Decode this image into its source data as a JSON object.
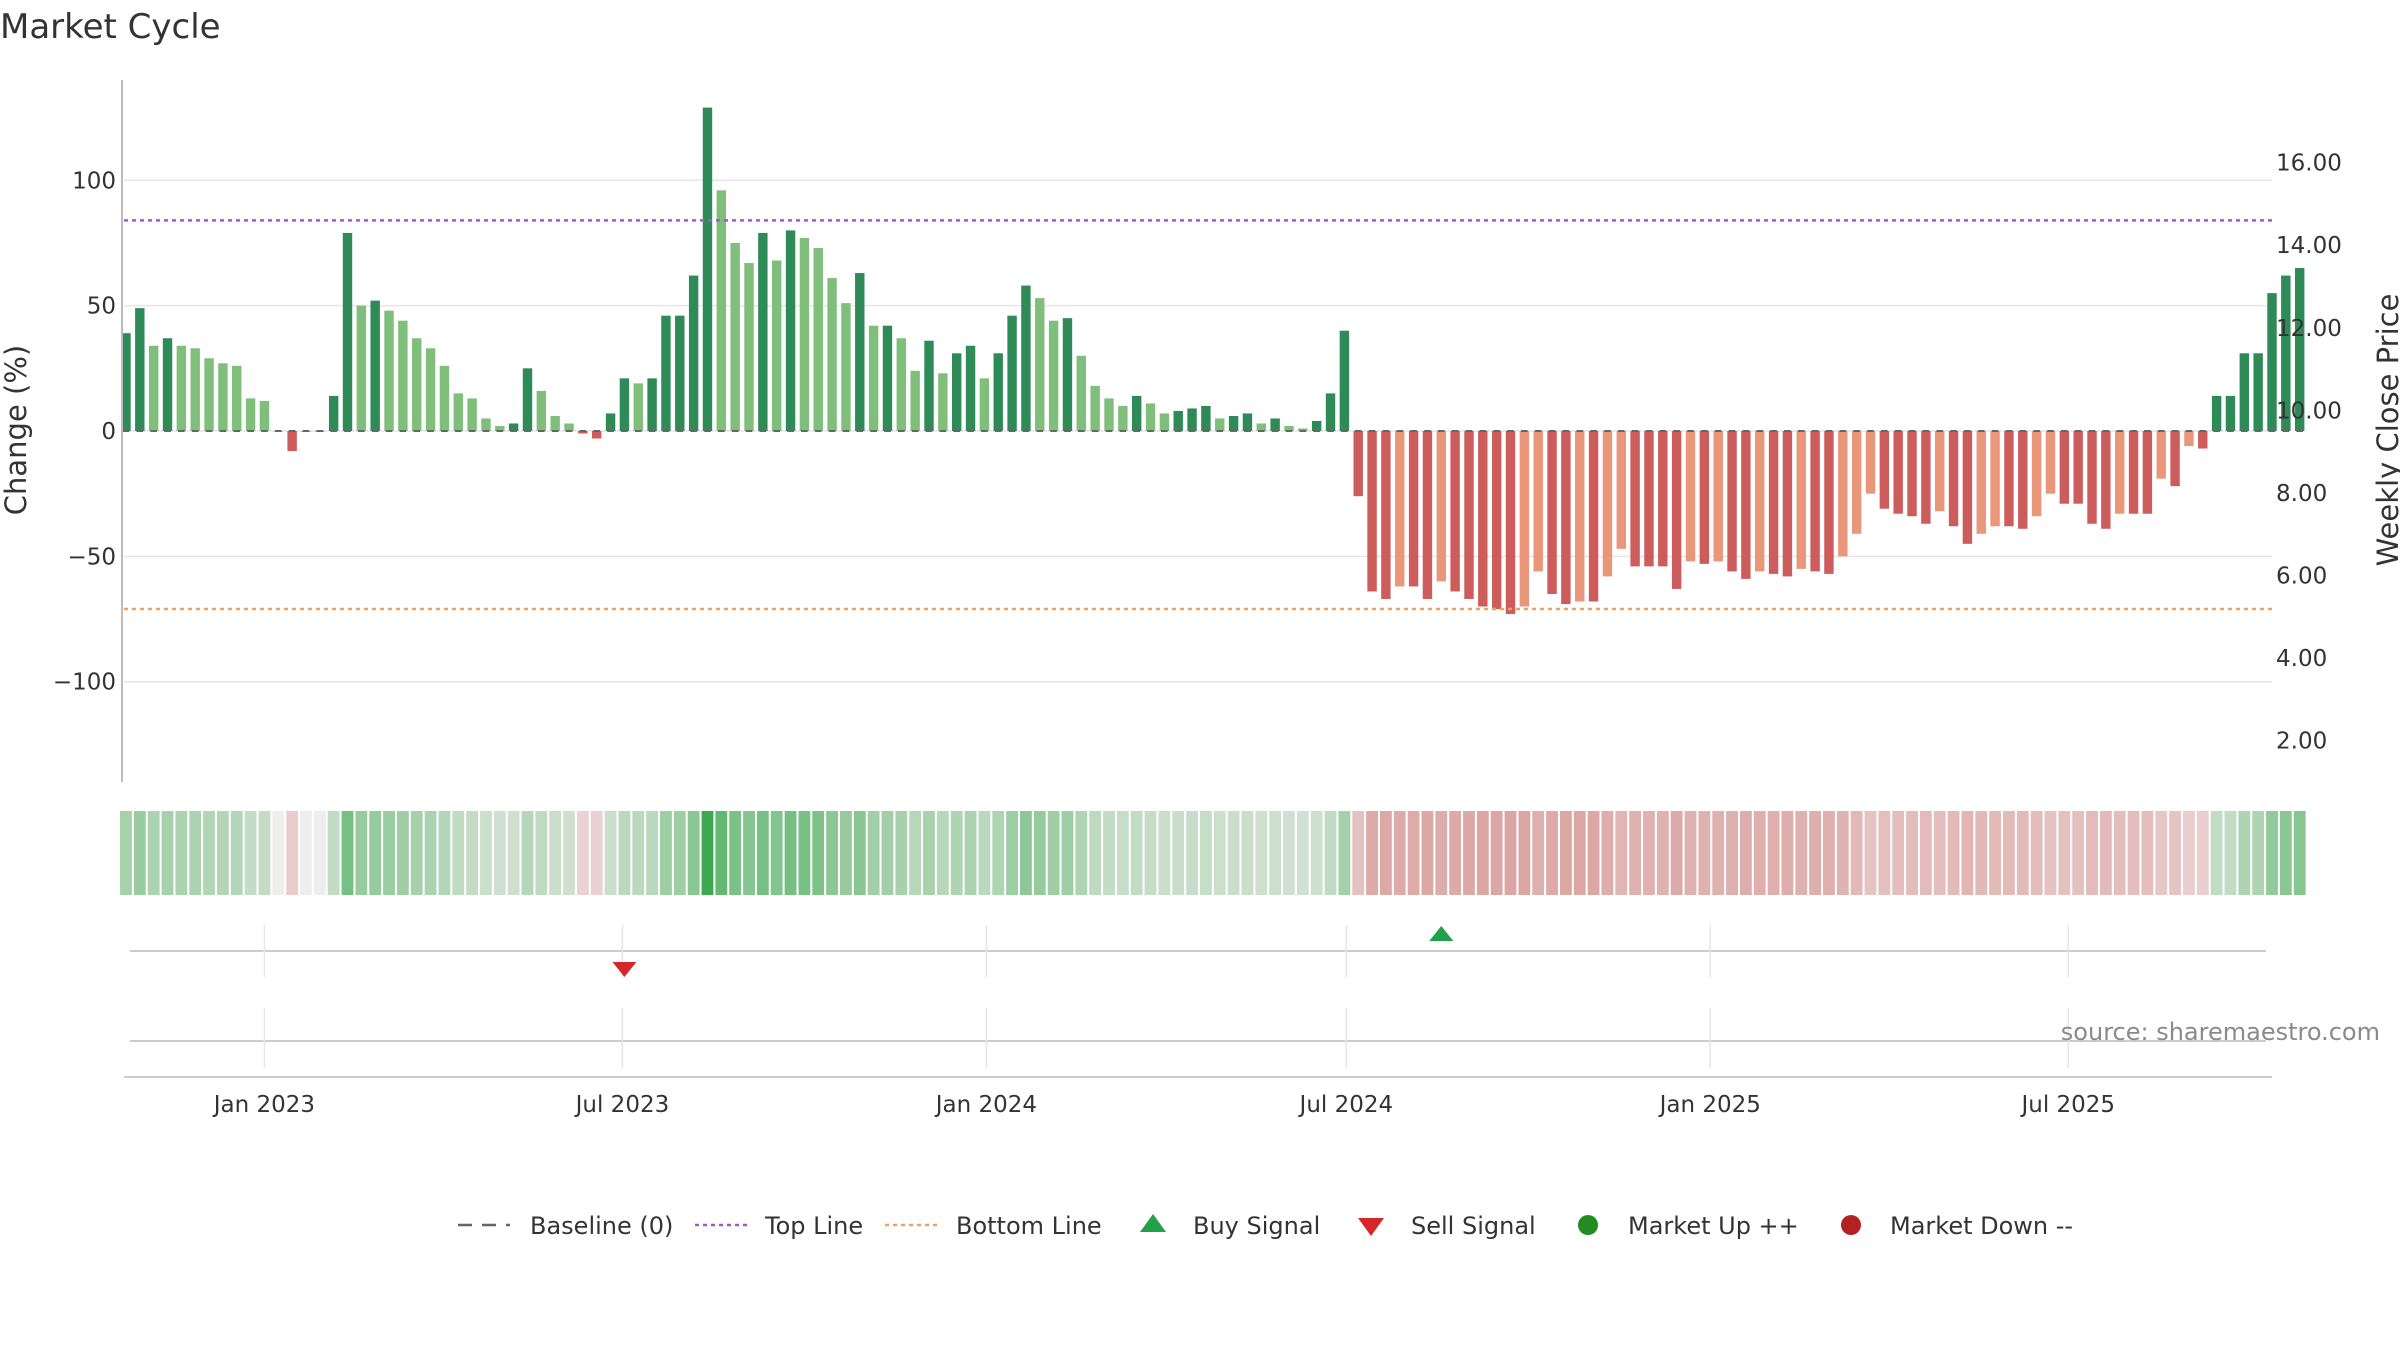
{
  "chart_data": {
    "type": "bar",
    "title": "Market Cycle",
    "ylabel": "Change (%)",
    "y2label": "Weekly Close Price",
    "ylim": [
      -140,
      140
    ],
    "y2lim": [
      1.0,
      18.0
    ],
    "yticks": [
      -100,
      -50,
      0,
      50,
      100
    ],
    "y2ticks": [
      "2.00",
      "4.00",
      "6.00",
      "8.00",
      "10.00",
      "12.00",
      "14.00",
      "16.00"
    ],
    "xrange": [
      "2022-10-22",
      "2025-10-12"
    ],
    "xticks": [
      {
        "date": "2023-01-01",
        "label": "Jan 2023"
      },
      {
        "date": "2023-07-01",
        "label": "Jul 2023"
      },
      {
        "date": "2024-01-01",
        "label": "Jan 2024"
      },
      {
        "date": "2024-07-01",
        "label": "Jul 2024"
      },
      {
        "date": "2025-01-01",
        "label": "Jan 2025"
      },
      {
        "date": "2025-07-01",
        "label": "Jul 2025"
      }
    ],
    "top_line": 84,
    "bottom_line": -71,
    "start_date": "2022-10-23",
    "week_interval_days": 7,
    "values": [
      39,
      49,
      34,
      37,
      34,
      33,
      29,
      27,
      26,
      13,
      12,
      0,
      -8,
      0,
      0,
      14,
      79,
      50,
      52,
      48,
      44,
      37,
      33,
      26,
      15,
      13,
      5,
      2,
      3,
      25,
      16,
      6,
      3,
      -1,
      -3,
      7,
      21,
      19,
      21,
      46,
      46,
      62,
      129,
      96,
      75,
      67,
      79,
      68,
      80,
      77,
      73,
      61,
      51,
      63,
      42,
      42,
      37,
      24,
      36,
      23,
      31,
      34,
      21,
      31,
      46,
      58,
      53,
      44,
      45,
      30,
      18,
      13,
      10,
      14,
      11,
      7,
      8,
      9,
      10,
      5,
      6,
      7,
      3,
      5,
      2,
      1,
      4,
      15,
      40,
      -26,
      -64,
      -67,
      -62,
      -62,
      -67,
      -60,
      -64,
      -67,
      -70,
      -71,
      -73,
      -70,
      -56,
      -65,
      -69,
      -68,
      -68,
      -58,
      -47,
      -54,
      -54,
      -54,
      -63,
      -52,
      -53,
      -52,
      -56,
      -59,
      -56,
      -57,
      -58,
      -55,
      -56,
      -57,
      -50,
      -41,
      -25,
      -31,
      -33,
      -34,
      -37,
      -32,
      -38,
      -45,
      -41,
      -38,
      -38,
      -39,
      -34,
      -25,
      -29,
      -29,
      -37,
      -39,
      -33,
      -33,
      -33,
      -19,
      -22,
      -6,
      -7,
      14,
      14,
      31,
      31,
      55,
      62,
      65
    ],
    "series": [
      {
        "values_ref": "values"
      }
    ],
    "buy_signals": [
      "2024-08-18"
    ],
    "sell_signals": [
      "2023-07-02"
    ],
    "grid": true,
    "legend_position": "bottom",
    "legend": [
      {
        "label": "Baseline (0)",
        "kind": "dash",
        "color": "#666666"
      },
      {
        "label": "Top Line",
        "kind": "dotted",
        "color": "#9b59d8"
      },
      {
        "label": "Bottom Line",
        "kind": "dotted",
        "color": "#f0a060"
      },
      {
        "label": "Buy Signal",
        "kind": "up-triangle",
        "color": "#22a04a"
      },
      {
        "label": "Sell Signal",
        "kind": "down-triangle",
        "color": "#d62728"
      },
      {
        "label": "Market Up ++",
        "kind": "dot",
        "color": "#228b22"
      },
      {
        "label": "Market Down --",
        "kind": "dot",
        "color": "#b22222"
      }
    ],
    "source": "source: sharemaestro.com",
    "colors": {
      "up_strong": "#2e8b57",
      "up_weak": "#7fbf7b",
      "down_strong": "#cd5c5c",
      "down_weak": "#e9967a",
      "top_line": "#9b59d8",
      "bottom_line": "#f0a060",
      "buy": "#22a04a",
      "sell": "#d62728",
      "grid": "#e6e6e6",
      "axis": "#bbbbbb"
    }
  }
}
